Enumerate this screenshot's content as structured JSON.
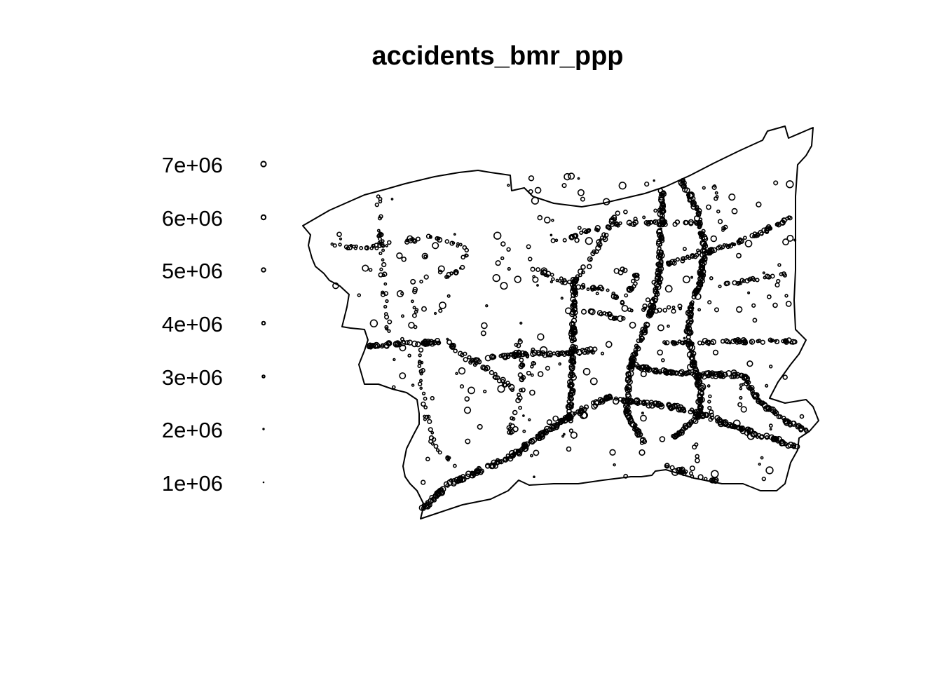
{
  "title": "accidents_bmr_ppp",
  "legend": {
    "items": [
      {
        "label": "7e+06",
        "value": 7000000
      },
      {
        "label": "6e+06",
        "value": 6000000
      },
      {
        "label": "5e+06",
        "value": 5000000
      },
      {
        "label": "4e+06",
        "value": 4000000
      },
      {
        "label": "3e+06",
        "value": 3000000
      },
      {
        "label": "2e+06",
        "value": 2000000
      },
      {
        "label": "1e+06",
        "value": 1000000
      }
    ]
  },
  "colors": {
    "stroke": "#000000",
    "background": "#ffffff"
  },
  "chart_data": {
    "type": "scatter",
    "title": "accidents_bmr_ppp",
    "marks": "point pattern of accident locations within a study window; circle size encodes a numeric mark",
    "mark_legend": [
      "7e+06",
      "6e+06",
      "5e+06",
      "4e+06",
      "3e+06",
      "2e+06",
      "1e+06"
    ]
  }
}
